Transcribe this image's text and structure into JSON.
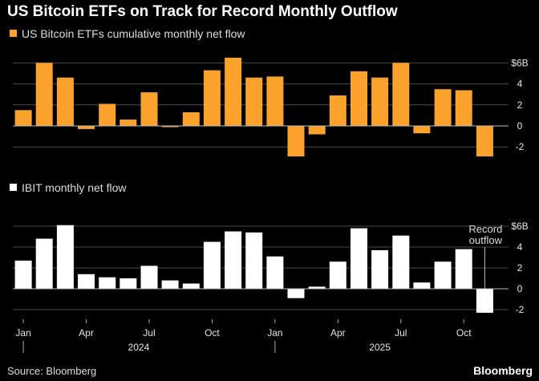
{
  "title": "US Bitcoin ETFs on Track for Record Monthly Outflow",
  "source": "Source: Bloomberg",
  "brand": "Bloomberg",
  "colors": {
    "background": "#000000",
    "orange": "#fba22c",
    "white": "#ffffff"
  },
  "chart_data": [
    {
      "type": "bar",
      "legend": "US Bitcoin ETFs cumulative monthly net flow",
      "color": "#fba22c",
      "unit": "$B",
      "ylim": [
        -3,
        7
      ],
      "yticks": [
        4,
        2,
        0,
        -2
      ],
      "ytick_top_label": "$6B",
      "months": [
        "2024-01",
        "2024-02",
        "2024-03",
        "2024-04",
        "2024-05",
        "2024-06",
        "2024-07",
        "2024-08",
        "2024-09",
        "2024-10",
        "2024-11",
        "2024-12",
        "2025-01",
        "2025-02",
        "2025-03",
        "2025-04",
        "2025-05",
        "2025-06",
        "2025-07",
        "2025-08",
        "2025-09",
        "2025-10",
        "2025-11"
      ],
      "values": [
        1.5,
        6.0,
        4.6,
        -0.3,
        2.1,
        0.6,
        3.2,
        -0.1,
        1.3,
        5.3,
        6.5,
        4.6,
        4.7,
        -2.9,
        -0.8,
        2.9,
        5.2,
        4.6,
        6.0,
        -0.7,
        3.5,
        3.4,
        -2.9
      ]
    },
    {
      "type": "bar",
      "legend": "IBIT monthly net flow",
      "color": "#ffffff",
      "unit": "$B",
      "ylim": [
        -3,
        7
      ],
      "yticks": [
        4,
        2,
        0,
        -2
      ],
      "ytick_top_label": "$6B",
      "months": [
        "2024-01",
        "2024-02",
        "2024-03",
        "2024-04",
        "2024-05",
        "2024-06",
        "2024-07",
        "2024-08",
        "2024-09",
        "2024-10",
        "2024-11",
        "2024-12",
        "2025-01",
        "2025-02",
        "2025-03",
        "2025-04",
        "2025-05",
        "2025-06",
        "2025-07",
        "2025-08",
        "2025-09",
        "2025-10",
        "2025-11"
      ],
      "values": [
        2.7,
        4.8,
        6.1,
        1.4,
        1.1,
        1.0,
        2.2,
        0.8,
        0.5,
        4.5,
        5.5,
        5.4,
        3.1,
        -0.9,
        0.2,
        2.6,
        5.8,
        3.7,
        5.1,
        0.6,
        2.6,
        3.8,
        -2.3
      ],
      "annotation": {
        "text_lines": [
          "Record",
          "outflow"
        ],
        "month": "2025-11"
      }
    }
  ],
  "x_axis": {
    "month_labels": [
      {
        "month": "2024-01",
        "label": "Jan"
      },
      {
        "month": "2024-04",
        "label": "Apr"
      },
      {
        "month": "2024-07",
        "label": "Jul"
      },
      {
        "month": "2024-10",
        "label": "Oct"
      },
      {
        "month": "2025-01",
        "label": "Jan"
      },
      {
        "month": "2025-04",
        "label": "Apr"
      },
      {
        "month": "2025-07",
        "label": "Jul"
      },
      {
        "month": "2025-10",
        "label": "Oct"
      }
    ],
    "years": [
      {
        "label": "2024",
        "start": "2024-01"
      },
      {
        "label": "2025",
        "start": "2025-01"
      }
    ]
  }
}
